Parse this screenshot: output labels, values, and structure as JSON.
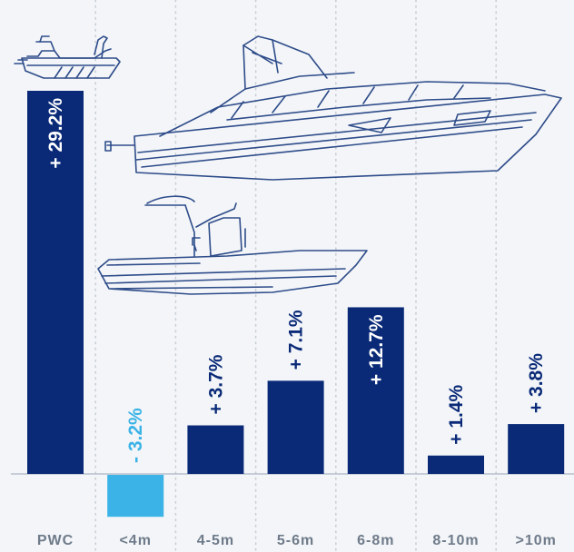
{
  "chart_data": {
    "type": "bar",
    "categories": [
      "PWC",
      "<4m",
      "4-5m",
      "5-6m",
      "6-8m",
      "8-10m",
      ">10m"
    ],
    "values": [
      29.2,
      -3.2,
      3.7,
      7.1,
      12.7,
      1.4,
      3.8
    ],
    "data_labels": [
      "+ 29.2%",
      "- 3.2%",
      "+ 3.7%",
      "+ 7.1%",
      "+ 12.7%",
      "+ 1.4%",
      "+ 3.8%"
    ],
    "ylim": [
      -4,
      29.2
    ],
    "grid": "vertical dotted separators",
    "colors": {
      "positive": "#0a2a78",
      "negative": "#3bb3e6",
      "label_on_dark": "#ffffff",
      "label_above": "#0a2a78",
      "axis": "#b8c0cc",
      "tick": "#6f7b8a",
      "grid": "#c9ced6",
      "illustration": "#2e4c8a",
      "background": "#f3f5f8"
    },
    "illustrations": [
      "jet-ski-icon",
      "yacht-icon",
      "rib-boat-icon"
    ]
  }
}
